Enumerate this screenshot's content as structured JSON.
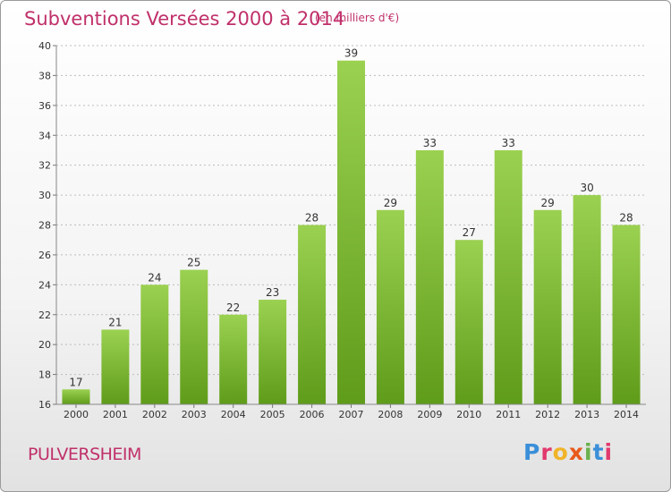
{
  "header": {
    "title": "Subventions Versées 2000 à 2014",
    "subtitle": "(en milliers d'€)"
  },
  "footer": {
    "commune": "PULVERSHEIM",
    "logo_text": "Proxiti",
    "logo_colors": [
      "#3a8fd9",
      "#e23a6e",
      "#f0b429",
      "#e8591c",
      "#6ab04c",
      "#3a8fd9",
      "#e23a6e"
    ]
  },
  "colors": {
    "bar_light": "#9bd151",
    "bar_dark": "#5f9c1a",
    "title": "#c0306a",
    "grid": "#bdbdbd"
  },
  "chart_data": {
    "type": "bar",
    "categories": [
      "2000",
      "2001",
      "2002",
      "2003",
      "2004",
      "2005",
      "2006",
      "2007",
      "2008",
      "2009",
      "2010",
      "2011",
      "2012",
      "2013",
      "2014"
    ],
    "values": [
      17,
      21,
      24,
      25,
      22,
      23,
      28,
      39,
      29,
      33,
      27,
      33,
      29,
      30,
      28
    ],
    "ylim": [
      16,
      40
    ],
    "yticks": [
      16,
      18,
      20,
      22,
      24,
      26,
      28,
      30,
      32,
      34,
      36,
      38,
      40
    ],
    "grid": true
  }
}
